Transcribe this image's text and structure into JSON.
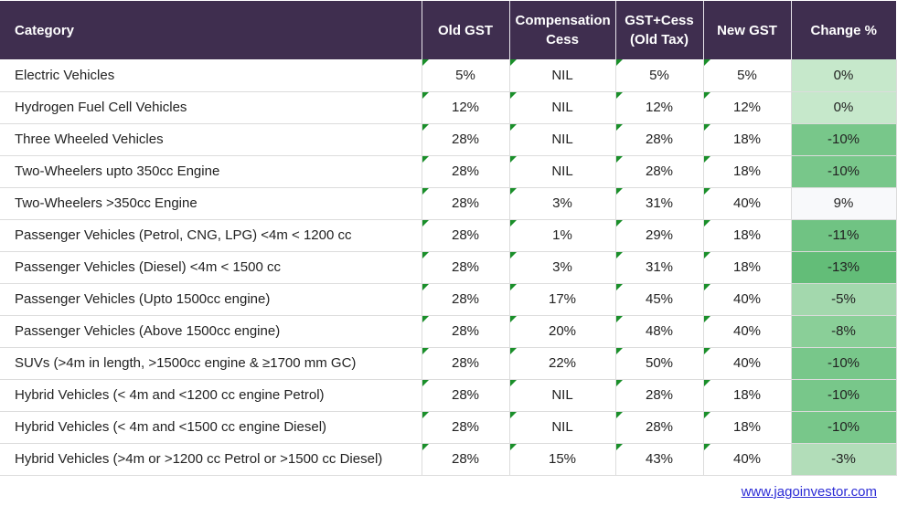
{
  "table": {
    "headers": [
      "Category",
      "Old GST",
      "Compensation Cess",
      "GST+Cess (Old Tax)",
      "New GST",
      "Change %"
    ],
    "rows": [
      {
        "category": "Electric Vehicles",
        "old_gst": "5%",
        "cess": "NIL",
        "old_total": "5%",
        "new_gst": "5%",
        "change": "0%",
        "change_color": "#c6e8cb"
      },
      {
        "category": "Hydrogen Fuel Cell Vehicles",
        "old_gst": "12%",
        "cess": "NIL",
        "old_total": "12%",
        "new_gst": "12%",
        "change": "0%",
        "change_color": "#c6e8cb"
      },
      {
        "category": "Three Wheeled Vehicles",
        "old_gst": "28%",
        "cess": "NIL",
        "old_total": "28%",
        "new_gst": "18%",
        "change": "-10%",
        "change_color": "#78c78a"
      },
      {
        "category": "Two-Wheelers upto 350cc Engine",
        "old_gst": "28%",
        "cess": "NIL",
        "old_total": "28%",
        "new_gst": "18%",
        "change": "-10%",
        "change_color": "#78c78a"
      },
      {
        "category": "Two-Wheelers >350cc Engine",
        "old_gst": "28%",
        "cess": "3%",
        "old_total": "31%",
        "new_gst": "40%",
        "change": "9%",
        "change_color": "#f8f9fb"
      },
      {
        "category": "Passenger Vehicles (Petrol, CNG, LPG) <4m < 1200 cc",
        "old_gst": "28%",
        "cess": "1%",
        "old_total": "29%",
        "new_gst": "18%",
        "change": "-11%",
        "change_color": "#70c383"
      },
      {
        "category": "Passenger Vehicles (Diesel) <4m < 1500 cc",
        "old_gst": "28%",
        "cess": "3%",
        "old_total": "31%",
        "new_gst": "18%",
        "change": "-13%",
        "change_color": "#63bd78"
      },
      {
        "category": "Passenger Vehicles (Upto 1500cc engine)",
        "old_gst": "28%",
        "cess": "17%",
        "old_total": "45%",
        "new_gst": "40%",
        "change": "-5%",
        "change_color": "#a3d8ad"
      },
      {
        "category": "Passenger Vehicles (Above 1500cc engine)",
        "old_gst": "28%",
        "cess": "20%",
        "old_total": "48%",
        "new_gst": "40%",
        "change": "-8%",
        "change_color": "#8acf98"
      },
      {
        "category": "SUVs (>4m in length, >1500cc engine & ≥1700 mm GC)",
        "old_gst": "28%",
        "cess": "22%",
        "old_total": "50%",
        "new_gst": "40%",
        "change": "-10%",
        "change_color": "#78c78a"
      },
      {
        "category": "Hybrid Vehicles (< 4m and <1200 cc engine Petrol)",
        "old_gst": "28%",
        "cess": "NIL",
        "old_total": "28%",
        "new_gst": "18%",
        "change": "-10%",
        "change_color": "#78c78a"
      },
      {
        "category": "Hybrid Vehicles (< 4m and <1500 cc engine Diesel)",
        "old_gst": "28%",
        "cess": "NIL",
        "old_total": "28%",
        "new_gst": "18%",
        "change": "-10%",
        "change_color": "#78c78a"
      },
      {
        "category": "Hybrid Vehicles (>4m or >1200 cc Petrol or >1500 cc Diesel)",
        "old_gst": "28%",
        "cess": "15%",
        "old_total": "43%",
        "new_gst": "40%",
        "change": "-3%",
        "change_color": "#b2ddb9"
      }
    ]
  },
  "footer": {
    "link": "www.jagoinvestor.com"
  },
  "colors": {
    "header_bg": "#3f2e4f",
    "header_text": "#ffffff",
    "flag": "#1a8f2a",
    "link": "#2b2bd6"
  }
}
